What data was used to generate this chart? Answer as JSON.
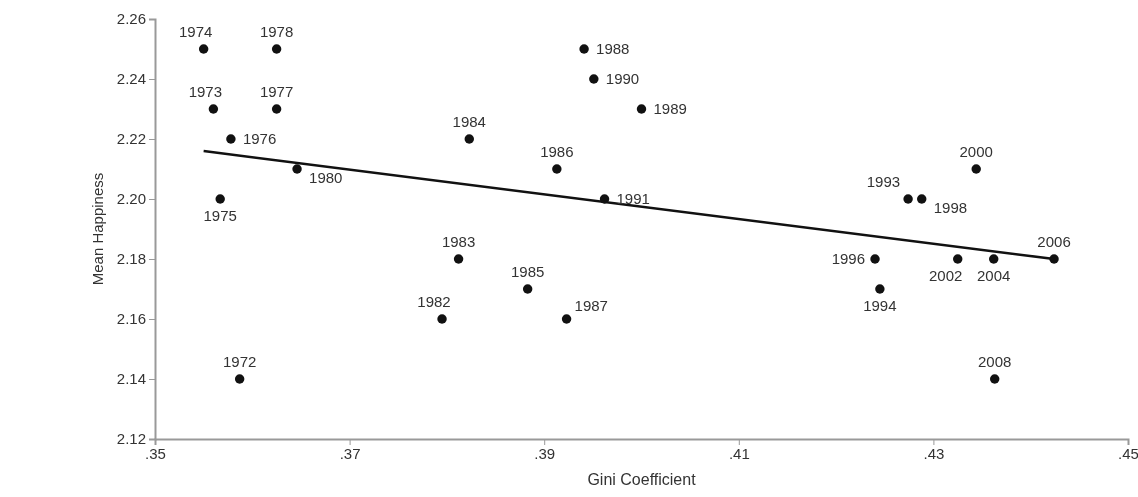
{
  "chart_data": {
    "type": "scatter",
    "xlabel": "Gini Coefficient",
    "ylabel": "Mean Happiness",
    "xlim": [
      0.35,
      0.45
    ],
    "ylim": [
      2.12,
      2.26
    ],
    "xticks": [
      {
        "value": 0.35,
        "label": ".35"
      },
      {
        "value": 0.37,
        "label": ".37"
      },
      {
        "value": 0.39,
        "label": ".39"
      },
      {
        "value": 0.41,
        "label": ".41"
      },
      {
        "value": 0.43,
        "label": ".43"
      },
      {
        "value": 0.45,
        "label": ".45"
      }
    ],
    "yticks": [
      {
        "value": 2.12,
        "label": "2.12"
      },
      {
        "value": 2.14,
        "label": "2.14"
      },
      {
        "value": 2.16,
        "label": "2.16"
      },
      {
        "value": 2.18,
        "label": "2.18"
      },
      {
        "value": 2.2,
        "label": "2.20"
      },
      {
        "value": 2.22,
        "label": "2.22"
      },
      {
        "value": 2.24,
        "label": "2.24"
      },
      {
        "value": 2.26,
        "label": "2.26"
      }
    ],
    "grid": false,
    "series": [
      {
        "color": "#111111",
        "marker": "circle",
        "x": [
          0.355,
          0.3625,
          0.3941,
          0.3951,
          0.356,
          0.3625,
          0.4,
          0.3578,
          0.3823,
          0.3913,
          0.3646,
          0.4344,
          0.3567,
          0.3962,
          0.4274,
          0.4288,
          0.3812,
          0.424,
          0.4325,
          0.4362,
          0.4424,
          0.3883,
          0.4245,
          0.3795,
          0.3923,
          0.3587,
          0.4363
        ],
        "values": [
          2.25,
          2.25,
          2.25,
          2.24,
          2.23,
          2.23,
          2.23,
          2.22,
          2.22,
          2.21,
          2.21,
          2.21,
          2.2,
          2.2,
          2.2,
          2.2,
          2.18,
          2.18,
          2.18,
          2.18,
          2.18,
          2.17,
          2.17,
          2.16,
          2.16,
          2.14,
          2.14
        ]
      },
      {
        "type": "line",
        "color": "#111111",
        "x": [
          0.355,
          0.4424
        ],
        "values": [
          2.216,
          2.18
        ]
      }
    ],
    "annotations": [
      {
        "text": "1974",
        "x": 0.355,
        "y": 2.25
      },
      {
        "text": "1978",
        "x": 0.3625,
        "y": 2.25
      },
      {
        "text": "1988",
        "x": 0.3941,
        "y": 2.25
      },
      {
        "text": "1990",
        "x": 0.3951,
        "y": 2.24
      },
      {
        "text": "1973",
        "x": 0.356,
        "y": 2.23
      },
      {
        "text": "1977",
        "x": 0.3625,
        "y": 2.23
      },
      {
        "text": "1989",
        "x": 0.4,
        "y": 2.23
      },
      {
        "text": "1976",
        "x": 0.3578,
        "y": 2.22
      },
      {
        "text": "1984",
        "x": 0.3823,
        "y": 2.22
      },
      {
        "text": "1986",
        "x": 0.3913,
        "y": 2.21
      },
      {
        "text": "1980",
        "x": 0.3646,
        "y": 2.21
      },
      {
        "text": "2000",
        "x": 0.4344,
        "y": 2.21
      },
      {
        "text": "1975",
        "x": 0.3567,
        "y": 2.2
      },
      {
        "text": "1991",
        "x": 0.3962,
        "y": 2.2
      },
      {
        "text": "1993",
        "x": 0.4274,
        "y": 2.2
      },
      {
        "text": "1998",
        "x": 0.4288,
        "y": 2.2
      },
      {
        "text": "1983",
        "x": 0.3812,
        "y": 2.18
      },
      {
        "text": "1996",
        "x": 0.424,
        "y": 2.18
      },
      {
        "text": "2002",
        "x": 0.4325,
        "y": 2.18
      },
      {
        "text": "2004",
        "x": 0.4362,
        "y": 2.18
      },
      {
        "text": "2006",
        "x": 0.4424,
        "y": 2.18
      },
      {
        "text": "1985",
        "x": 0.3883,
        "y": 2.17
      },
      {
        "text": "1994",
        "x": 0.4245,
        "y": 2.17
      },
      {
        "text": "1982",
        "x": 0.3795,
        "y": 2.16
      },
      {
        "text": "1987",
        "x": 0.3923,
        "y": 2.16
      },
      {
        "text": "1972",
        "x": 0.3587,
        "y": 2.14
      },
      {
        "text": "2008",
        "x": 0.4363,
        "y": 2.14
      }
    ]
  }
}
